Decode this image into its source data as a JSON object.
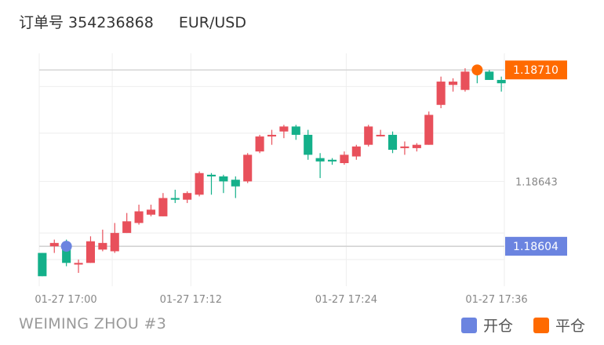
{
  "header": {
    "order_label": "订单号 354236868",
    "symbol": "EUR/USD"
  },
  "footer": {
    "account": "WEIMING ZHOU #3"
  },
  "legend": {
    "open_label": "开仓",
    "close_label": "平仓"
  },
  "colors": {
    "up": "#e8505b",
    "down": "#14b08a",
    "open": "#6b84e0",
    "close": "#ff6a00",
    "grid": "#eeeeee",
    "axis_text": "#888888"
  },
  "chart_data": {
    "type": "candlestick",
    "x_ticks": [
      "01-27 17:00",
      "01-27 17:12",
      "01-27 17:24",
      "01-27 17:36"
    ],
    "y_ticks": [
      "1.18643"
    ],
    "price_labels": {
      "open": "1.18604",
      "close": "1.18710"
    },
    "ylim": [
      1.1858,
      1.1872
    ],
    "open_price": 1.18604,
    "close_price": 1.1871,
    "open_marker_index": 2,
    "close_marker_index": 36,
    "candles": [
      {
        "o": 1.186,
        "h": 1.186,
        "l": 1.18586,
        "c": 1.18586
      },
      {
        "o": 1.18604,
        "h": 1.18608,
        "l": 1.186,
        "c": 1.18606
      },
      {
        "o": 1.18606,
        "h": 1.18608,
        "l": 1.18592,
        "c": 1.18594
      },
      {
        "o": 1.18593,
        "h": 1.18596,
        "l": 1.18588,
        "c": 1.18594
      },
      {
        "o": 1.18594,
        "h": 1.1861,
        "l": 1.18594,
        "c": 1.18607
      },
      {
        "o": 1.18602,
        "h": 1.18614,
        "l": 1.18601,
        "c": 1.18606
      },
      {
        "o": 1.18601,
        "h": 1.18618,
        "l": 1.186,
        "c": 1.18612
      },
      {
        "o": 1.18612,
        "h": 1.18624,
        "l": 1.18612,
        "c": 1.18619
      },
      {
        "o": 1.18618,
        "h": 1.18629,
        "l": 1.18617,
        "c": 1.18625
      },
      {
        "o": 1.18623,
        "h": 1.18629,
        "l": 1.18622,
        "c": 1.18626
      },
      {
        "o": 1.18622,
        "h": 1.18636,
        "l": 1.18622,
        "c": 1.18633
      },
      {
        "o": 1.18633,
        "h": 1.18638,
        "l": 1.1863,
        "c": 1.18632
      },
      {
        "o": 1.18632,
        "h": 1.18637,
        "l": 1.1863,
        "c": 1.18636
      },
      {
        "o": 1.18635,
        "h": 1.18649,
        "l": 1.18634,
        "c": 1.18648
      },
      {
        "o": 1.18647,
        "h": 1.18648,
        "l": 1.18635,
        "c": 1.18646
      },
      {
        "o": 1.18646,
        "h": 1.18647,
        "l": 1.18636,
        "c": 1.18643
      },
      {
        "o": 1.18644,
        "h": 1.18646,
        "l": 1.18633,
        "c": 1.1864
      },
      {
        "o": 1.18643,
        "h": 1.1866,
        "l": 1.18642,
        "c": 1.18659
      },
      {
        "o": 1.18661,
        "h": 1.18671,
        "l": 1.1866,
        "c": 1.1867
      },
      {
        "o": 1.1867,
        "h": 1.18674,
        "l": 1.18665,
        "c": 1.18671
      },
      {
        "o": 1.18673,
        "h": 1.18677,
        "l": 1.18669,
        "c": 1.18676
      },
      {
        "o": 1.18676,
        "h": 1.18677,
        "l": 1.18668,
        "c": 1.18671
      },
      {
        "o": 1.18671,
        "h": 1.18674,
        "l": 1.18656,
        "c": 1.18659
      },
      {
        "o": 1.18657,
        "h": 1.1866,
        "l": 1.18645,
        "c": 1.18655
      },
      {
        "o": 1.18656,
        "h": 1.18657,
        "l": 1.18653,
        "c": 1.18655
      },
      {
        "o": 1.18654,
        "h": 1.18661,
        "l": 1.18653,
        "c": 1.18659
      },
      {
        "o": 1.18658,
        "h": 1.18665,
        "l": 1.18656,
        "c": 1.18664
      },
      {
        "o": 1.18665,
        "h": 1.18677,
        "l": 1.18664,
        "c": 1.18676
      },
      {
        "o": 1.18671,
        "h": 1.18674,
        "l": 1.1867,
        "c": 1.18671
      },
      {
        "o": 1.18671,
        "h": 1.18673,
        "l": 1.1866,
        "c": 1.18662
      },
      {
        "o": 1.18663,
        "h": 1.18667,
        "l": 1.18659,
        "c": 1.18664
      },
      {
        "o": 1.18663,
        "h": 1.18666,
        "l": 1.18661,
        "c": 1.18665
      },
      {
        "o": 1.18665,
        "h": 1.18685,
        "l": 1.18665,
        "c": 1.18683
      },
      {
        "o": 1.18689,
        "h": 1.18706,
        "l": 1.18687,
        "c": 1.18703
      },
      {
        "o": 1.18701,
        "h": 1.18705,
        "l": 1.18697,
        "c": 1.18703
      },
      {
        "o": 1.18698,
        "h": 1.18711,
        "l": 1.18697,
        "c": 1.18709
      },
      {
        "o": 1.1871,
        "h": 1.18712,
        "l": 1.18702,
        "c": 1.18708
      },
      {
        "o": 1.18709,
        "h": 1.1871,
        "l": 1.18704,
        "c": 1.18704
      },
      {
        "o": 1.18704,
        "h": 1.18706,
        "l": 1.18697,
        "c": 1.18702
      }
    ]
  }
}
